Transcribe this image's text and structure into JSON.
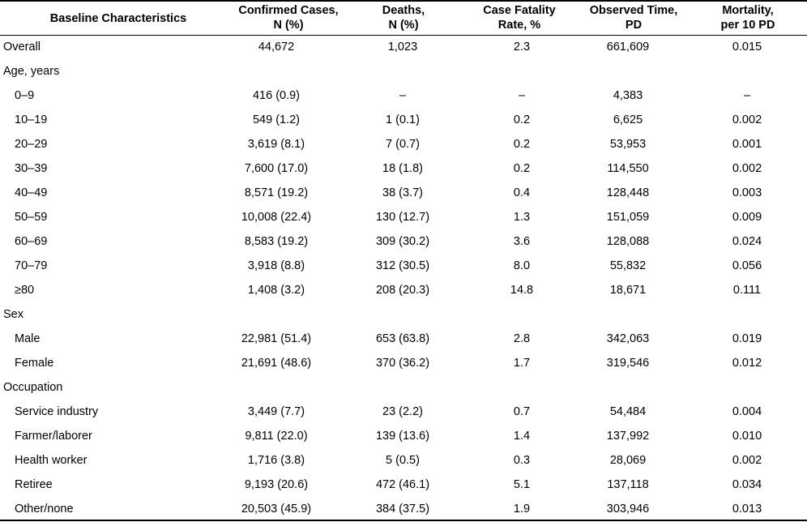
{
  "table": {
    "headers": [
      [
        "Baseline Characteristics"
      ],
      [
        "Confirmed Cases,",
        "N (%)"
      ],
      [
        "Deaths,",
        "N (%)"
      ],
      [
        "Case Fatality",
        "Rate, %"
      ],
      [
        "Observed Time,",
        "PD"
      ],
      [
        "Mortality,",
        "per 10 PD"
      ]
    ],
    "rows": [
      {
        "label": "Overall",
        "indent": false,
        "cells": [
          "44,672",
          "1,023",
          "2.3",
          "661,609",
          "0.015"
        ]
      },
      {
        "label": "Age, years",
        "indent": false,
        "cells": [
          "",
          "",
          "",
          "",
          ""
        ]
      },
      {
        "label": "0–9",
        "indent": true,
        "cells": [
          "416 (0.9)",
          "–",
          "–",
          "4,383",
          "–"
        ]
      },
      {
        "label": "10–19",
        "indent": true,
        "cells": [
          "549 (1.2)",
          "1 (0.1)",
          "0.2",
          "6,625",
          "0.002"
        ]
      },
      {
        "label": "20–29",
        "indent": true,
        "cells": [
          "3,619 (8.1)",
          "7 (0.7)",
          "0.2",
          "53,953",
          "0.001"
        ]
      },
      {
        "label": "30–39",
        "indent": true,
        "cells": [
          "7,600 (17.0)",
          "18 (1.8)",
          "0.2",
          "114,550",
          "0.002"
        ]
      },
      {
        "label": "40–49",
        "indent": true,
        "cells": [
          "8,571 (19.2)",
          "38 (3.7)",
          "0.4",
          "128,448",
          "0.003"
        ]
      },
      {
        "label": "50–59",
        "indent": true,
        "cells": [
          "10,008 (22.4)",
          "130 (12.7)",
          "1.3",
          "151,059",
          "0.009"
        ]
      },
      {
        "label": "60–69",
        "indent": true,
        "cells": [
          "8,583 (19.2)",
          "309 (30.2)",
          "3.6",
          "128,088",
          "0.024"
        ]
      },
      {
        "label": "70–79",
        "indent": true,
        "cells": [
          "3,918 (8.8)",
          "312 (30.5)",
          "8.0",
          "55,832",
          "0.056"
        ]
      },
      {
        "label": "≥80",
        "indent": true,
        "cells": [
          "1,408 (3.2)",
          "208 (20.3)",
          "14.8",
          "18,671",
          "0.111"
        ]
      },
      {
        "label": "Sex",
        "indent": false,
        "cells": [
          "",
          "",
          "",
          "",
          ""
        ]
      },
      {
        "label": "Male",
        "indent": true,
        "cells": [
          "22,981 (51.4)",
          "653 (63.8)",
          "2.8",
          "342,063",
          "0.019"
        ]
      },
      {
        "label": "Female",
        "indent": true,
        "cells": [
          "21,691 (48.6)",
          "370 (36.2)",
          "1.7",
          "319,546",
          "0.012"
        ]
      },
      {
        "label": "Occupation",
        "indent": false,
        "cells": [
          "",
          "",
          "",
          "",
          ""
        ]
      },
      {
        "label": "Service industry",
        "indent": true,
        "cells": [
          "3,449 (7.7)",
          "23 (2.2)",
          "0.7",
          "54,484",
          "0.004"
        ]
      },
      {
        "label": "Farmer/laborer",
        "indent": true,
        "cells": [
          "9,811 (22.0)",
          "139 (13.6)",
          "1.4",
          "137,992",
          "0.010"
        ]
      },
      {
        "label": "Health worker",
        "indent": true,
        "cells": [
          "1,716 (3.8)",
          "5 (0.5)",
          "0.3",
          "28,069",
          "0.002"
        ]
      },
      {
        "label": "Retiree",
        "indent": true,
        "cells": [
          "9,193 (20.6)",
          "472 (46.1)",
          "5.1",
          "137,118",
          "0.034"
        ]
      },
      {
        "label": "Other/none",
        "indent": true,
        "cells": [
          "20,503 (45.9)",
          "384 (37.5)",
          "1.9",
          "303,946",
          "0.013"
        ]
      }
    ]
  }
}
